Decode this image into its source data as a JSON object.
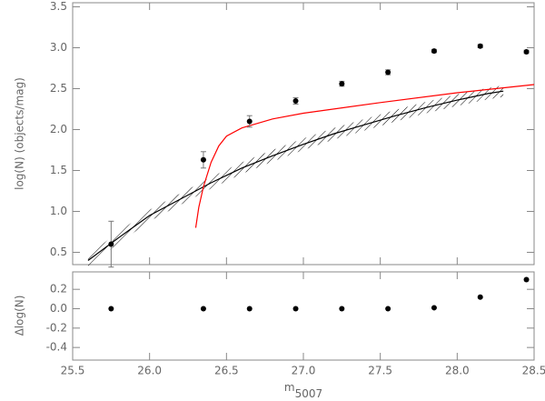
{
  "chart_data": [
    {
      "type": "scatter",
      "ylabel": "log(N)  (objects/mag)",
      "xlim": [
        25.5,
        28.5
      ],
      "ylim": [
        0.35,
        3.55
      ],
      "yticks": [
        {
          "value": 0.5,
          "label": "0.5"
        },
        {
          "value": 1.0,
          "label": "1.0"
        },
        {
          "value": 1.5,
          "label": "1.5"
        },
        {
          "value": 2.0,
          "label": "2.0"
        },
        {
          "value": 2.5,
          "label": "2.5"
        },
        {
          "value": 3.0,
          "label": "3.0"
        },
        {
          "value": 3.5,
          "label": "3.5"
        }
      ],
      "points": {
        "color": "#000000",
        "x": [
          25.75,
          26.35,
          26.65,
          26.95,
          27.25,
          27.55,
          27.85,
          28.15,
          28.45
        ],
        "values": [
          0.6,
          1.63,
          2.1,
          2.35,
          2.56,
          2.7,
          2.96,
          3.02,
          2.95
        ],
        "errors": [
          0.28,
          0.1,
          0.07,
          0.04,
          0.03,
          0.03,
          0.02,
          0.02,
          0.02
        ]
      },
      "lines": [
        {
          "color": "#000000",
          "band": 0.07,
          "x": [
            25.6,
            25.8,
            26.0,
            26.2,
            26.4,
            26.6,
            26.8,
            27.0,
            27.2,
            27.4,
            27.6,
            27.8,
            28.0,
            28.2,
            28.3
          ],
          "values": [
            0.4,
            0.68,
            0.95,
            1.15,
            1.35,
            1.53,
            1.68,
            1.82,
            1.95,
            2.06,
            2.17,
            2.27,
            2.36,
            2.44,
            2.47
          ]
        },
        {
          "color": "#ff0000",
          "x": [
            26.3,
            26.32,
            26.35,
            26.4,
            26.45,
            26.5,
            26.6,
            26.8,
            27.0,
            27.5,
            28.0,
            28.5
          ],
          "values": [
            0.8,
            1.05,
            1.3,
            1.6,
            1.8,
            1.92,
            2.02,
            2.13,
            2.2,
            2.33,
            2.45,
            2.55
          ]
        }
      ]
    },
    {
      "type": "scatter",
      "ylabel": "Δlog(N)",
      "xlabel": "m",
      "xlabel_sub": "5007",
      "xlim": [
        25.5,
        28.5
      ],
      "ylim": [
        -0.53,
        0.38
      ],
      "xticks": [
        {
          "value": 25.5,
          "label": "25.5"
        },
        {
          "value": 26.0,
          "label": "26.0"
        },
        {
          "value": 26.5,
          "label": "26.5"
        },
        {
          "value": 27.0,
          "label": "27.0"
        },
        {
          "value": 27.5,
          "label": "27.5"
        },
        {
          "value": 28.0,
          "label": "28.0"
        },
        {
          "value": 28.5,
          "label": "28.5"
        }
      ],
      "yticks": [
        {
          "value": 0.2,
          "label": "0.2"
        },
        {
          "value": 0.0,
          "label": "0.0"
        },
        {
          "value": -0.2,
          "label": "-0.2"
        },
        {
          "value": -0.4,
          "label": "-0.4"
        }
      ],
      "points": {
        "color": "#000000",
        "x": [
          25.75,
          26.35,
          26.65,
          26.95,
          27.25,
          27.55,
          27.85,
          28.15,
          28.45
        ],
        "values": [
          0,
          0,
          0,
          0,
          0,
          0,
          0.01,
          0.12,
          0.3
        ]
      }
    }
  ]
}
